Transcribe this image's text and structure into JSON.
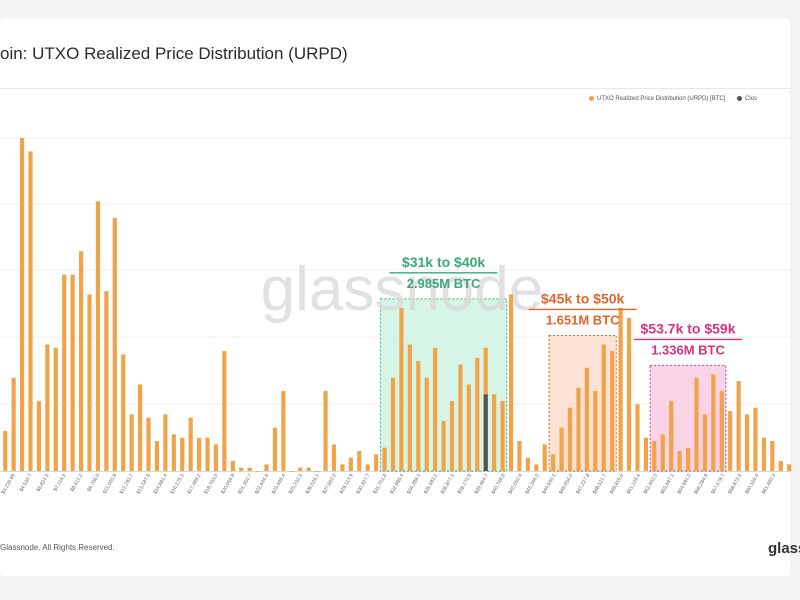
{
  "title": "oin: UTXO Realized Price Distribution (URPD)",
  "legend": [
    {
      "label": "UTXO Realized Price Distribution (URPD) [BTC]",
      "color": "#f1a34a"
    },
    {
      "label": "Clos",
      "color": "#555555"
    }
  ],
  "watermark": "glassnode",
  "footer": "Glassnode. All Rights Reserved.",
  "brand": "glass",
  "chart_data": {
    "type": "bar",
    "title": "oin: UTXO Realized Price Distribution (URPD)",
    "xlabel": "",
    "ylabel": "",
    "ylim": [
      0,
      1
    ],
    "tick_labels": [
      "$3,236.99",
      "$4,530.7",
      "$5,824.5",
      "$7,118.3",
      "$8,412.2",
      "$9,706.0",
      "$11,000.9",
      "$12,293.7",
      "$13,587.6",
      "$14,881.4",
      "$16,175.3",
      "$17,469.2",
      "$18,763.0",
      "$20,056.9",
      "$21,350.7",
      "$22,644.6",
      "$23,938.4",
      "$25,232.3",
      "$26,526.1",
      "$27,820.0",
      "$29,113.9",
      "$30,407.7",
      "$31,701.6",
      "$32,995.4",
      "$34,289.3",
      "$35,583.1",
      "$36,877.0",
      "$38,170.8",
      "$39,464.7",
      "$40,758.6",
      "$42,052.4",
      "$43,346.3",
      "$44,640.1",
      "$45,934.0",
      "$47,227.8",
      "$48,521.7",
      "$49,815.6",
      "$51,109.4",
      "$52,403.3",
      "$53,697.1",
      "$54,991.0",
      "$56,284.8",
      "$57,578.7",
      "$58,872.5",
      "$60,166.4",
      "$61,460.3"
    ],
    "series": [
      {
        "name": "UTXO Realized Price Distribution (URPD) [BTC]",
        "color": "#f1a34a",
        "values": [
          0.12,
          0.28,
          1.0,
          0.96,
          0.21,
          0.38,
          0.37,
          0.59,
          0.59,
          0.66,
          0.53,
          0.81,
          0.54,
          0.76,
          0.35,
          0.17,
          0.26,
          0.16,
          0.09,
          0.17,
          0.11,
          0.1,
          0.16,
          0.1,
          0.1,
          0.08,
          0.36,
          0.03,
          0.01,
          0.01,
          0.0,
          0.02,
          0.13,
          0.24,
          0.0,
          0.01,
          0.01,
          0.0,
          0.24,
          0.08,
          0.02,
          0.04,
          0.06,
          0.02,
          0.05,
          0.07,
          0.28,
          0.49,
          0.38,
          0.33,
          0.28,
          0.37,
          0.15,
          0.21,
          0.32,
          0.26,
          0.34,
          0.37,
          0.23,
          0.21,
          0.53,
          0.09,
          0.04,
          0.02,
          0.08,
          0.05,
          0.13,
          0.19,
          0.25,
          0.31,
          0.24,
          0.38,
          0.36,
          0.49,
          0.46,
          0.2,
          0.1,
          0.09,
          0.11,
          0.21,
          0.06,
          0.07,
          0.28,
          0.17,
          0.29,
          0.24,
          0.18,
          0.27,
          0.17,
          0.19,
          0.1,
          0.09,
          0.03,
          0.02
        ]
      },
      {
        "name": "Clos",
        "color": "#555555",
        "points": [
          {
            "index": 57,
            "value": 0.23
          }
        ]
      }
    ],
    "annotations": [
      {
        "range": "$31k to $40k",
        "supply": "2.985M BTC",
        "color": "#3aa87a",
        "fill": "#c9f2de",
        "from_index": 45,
        "to_index": 59
      },
      {
        "range": "$45k to $50k",
        "supply": "1.651M BTC",
        "color": "#e0662c",
        "fill": "#fbd8c4",
        "from_index": 65,
        "to_index": 72
      },
      {
        "range": "$53.7k to $59k",
        "supply": "1.336M BTC",
        "color": "#d2357c",
        "fill": "#f8c5de",
        "from_index": 77,
        "to_index": 85
      }
    ]
  }
}
